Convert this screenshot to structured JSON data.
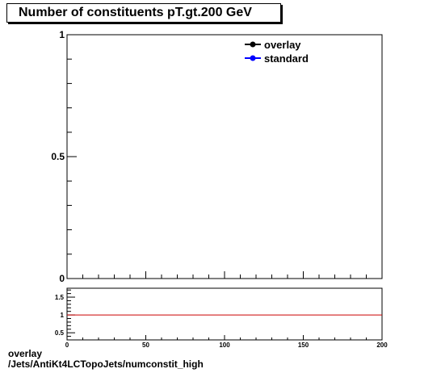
{
  "title": "Number of constituents pT.gt.200 GeV",
  "footer": {
    "line1": "overlay",
    "line2": "/Jets/AntiKt4LCTopoJets/numconstit_high"
  },
  "chart_data": [
    {
      "type": "line",
      "panel": "main",
      "xlim": [
        0,
        200
      ],
      "ylim": [
        0,
        1
      ],
      "y_ticks": [
        "0",
        "0.5",
        "1"
      ],
      "x_tick_labels_shown": false,
      "grid": false,
      "legend_position": "top-right",
      "series": [
        {
          "name": "overlay",
          "color": "#000000",
          "marker": "filled-circle",
          "x": [],
          "y": []
        },
        {
          "name": "standard",
          "color": "#0000ff",
          "marker": "filled-circle",
          "x": [],
          "y": []
        }
      ]
    },
    {
      "type": "line",
      "panel": "ratio",
      "xlim": [
        0,
        200
      ],
      "ylim": [
        0.3,
        1.75
      ],
      "x_ticks": [
        "0",
        "50",
        "100",
        "150",
        "200"
      ],
      "y_ticks": [
        "0.5",
        "1",
        "1.5"
      ],
      "grid": false,
      "series": [
        {
          "color": "#cc0000",
          "x": [
            0,
            200
          ],
          "y": [
            1,
            1
          ]
        }
      ]
    }
  ]
}
